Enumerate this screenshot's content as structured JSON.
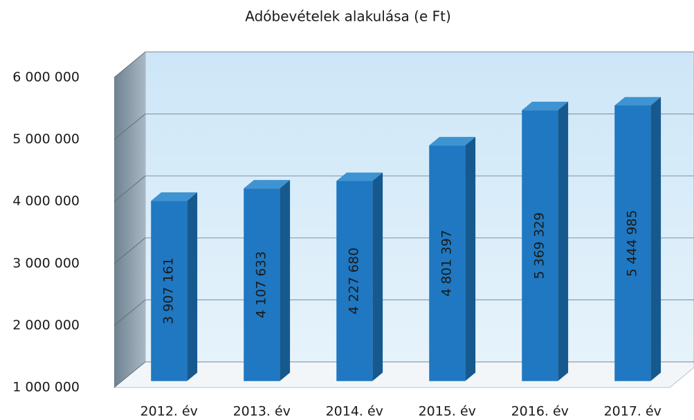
{
  "chart_data": {
    "type": "bar3d",
    "title": "Adóbevételek alakulása (e Ft)",
    "categories": [
      "2012. év",
      "2013. év",
      "2014. év",
      "2015. év",
      "2016. év",
      "2017. év"
    ],
    "values": [
      3907161,
      4107633,
      4227680,
      4801397,
      5369329,
      5444985
    ],
    "value_labels": [
      "3 907 161",
      "4 107 633",
      "4 227 680",
      "4 801 397",
      "5 369 329",
      "5 444 985"
    ],
    "color": "#1f78c1",
    "ylim": [
      1000000,
      6000000
    ],
    "yticks": [
      {
        "value": 1000000,
        "label": "1 000 000"
      },
      {
        "value": 2000000,
        "label": "2 000 000"
      },
      {
        "value": 3000000,
        "label": "3 000 000"
      },
      {
        "value": 4000000,
        "label": "4 000 000"
      },
      {
        "value": 5000000,
        "label": "5 000 000"
      },
      {
        "value": 6000000,
        "label": "6 000 000"
      }
    ],
    "grid": true
  }
}
